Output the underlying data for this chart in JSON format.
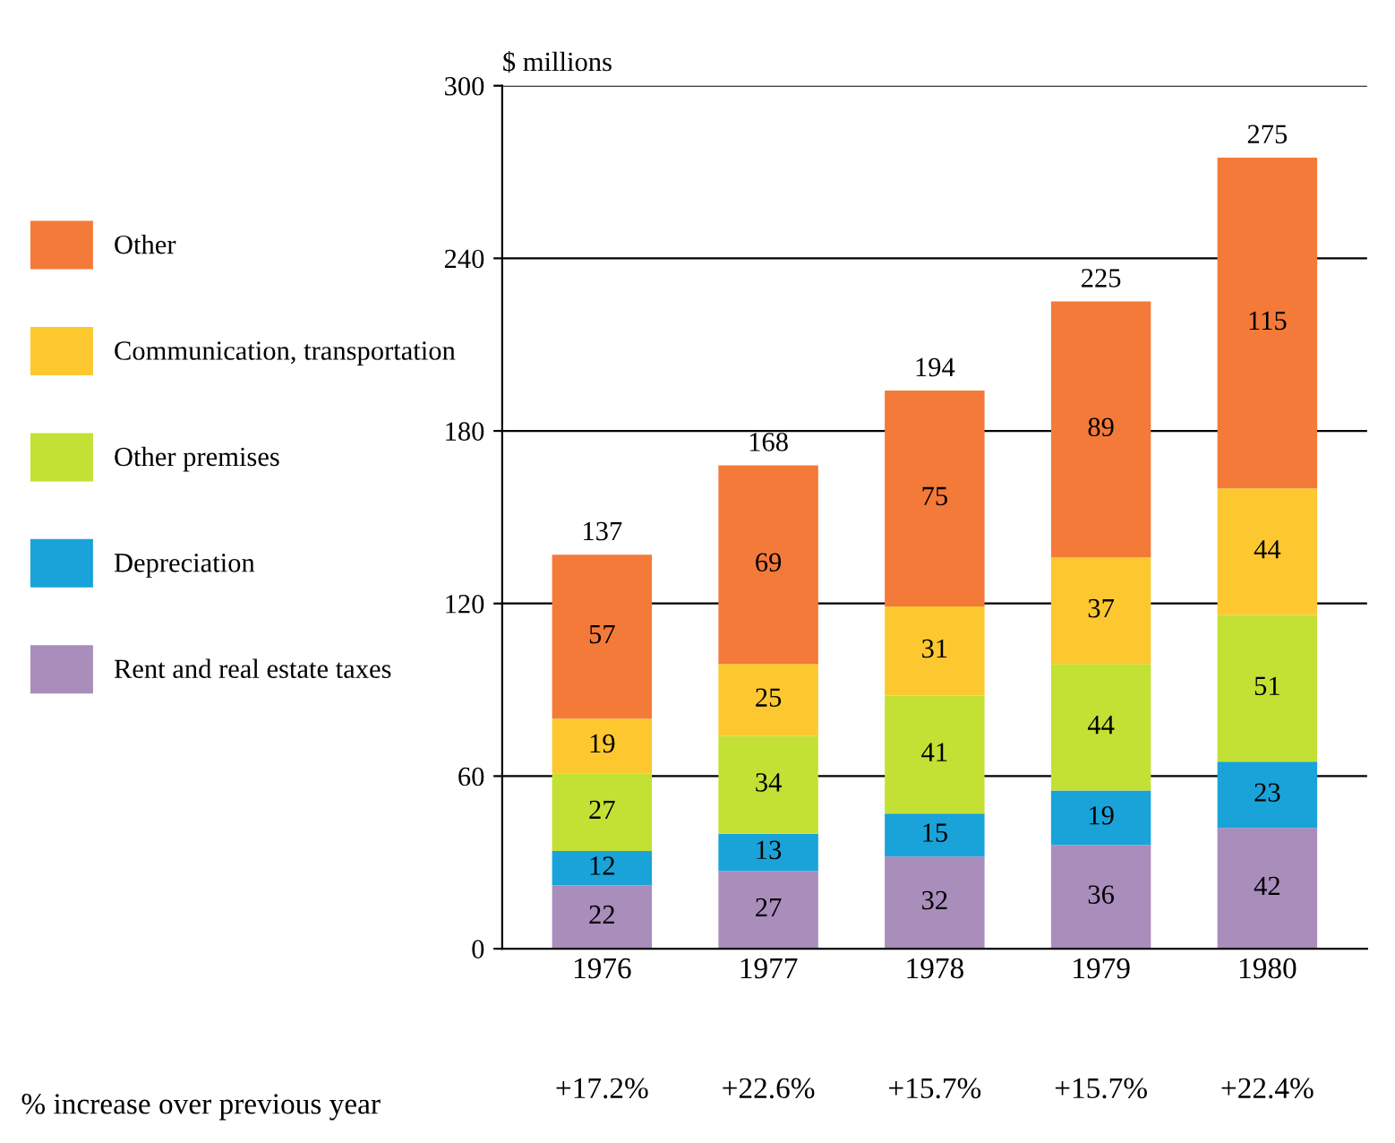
{
  "chart_data": {
    "type": "bar",
    "stacked": true,
    "ylabel": "$ millions",
    "categories": [
      "1976",
      "1977",
      "1978",
      "1979",
      "1980"
    ],
    "series": [
      {
        "name": "Rent and real estate taxes",
        "color": "#a98dbb",
        "values": [
          22,
          27,
          32,
          36,
          42
        ]
      },
      {
        "name": "Depreciation",
        "color": "#1aa3d9",
        "values": [
          12,
          13,
          15,
          19,
          23
        ]
      },
      {
        "name": "Other premises",
        "color": "#c3e035",
        "values": [
          27,
          34,
          41,
          44,
          51
        ]
      },
      {
        "name": "Communication, transportation",
        "color": "#fdc82f",
        "values": [
          19,
          25,
          31,
          37,
          44
        ]
      },
      {
        "name": "Other",
        "color": "#f47a3a",
        "values": [
          57,
          69,
          75,
          89,
          115
        ]
      }
    ],
    "totals": [
      "137",
      "168",
      "194",
      "225",
      "275"
    ],
    "data_labels": true,
    "ylim": [
      0,
      300
    ],
    "yticks": [
      0,
      60,
      120,
      180,
      240,
      300
    ],
    "grid": "y",
    "legend": "left",
    "annotations": [
      "% increase over previous year",
      "+17.2%",
      "+22.6%",
      "+15.7%",
      "+15.7%",
      "+22.4%"
    ]
  }
}
